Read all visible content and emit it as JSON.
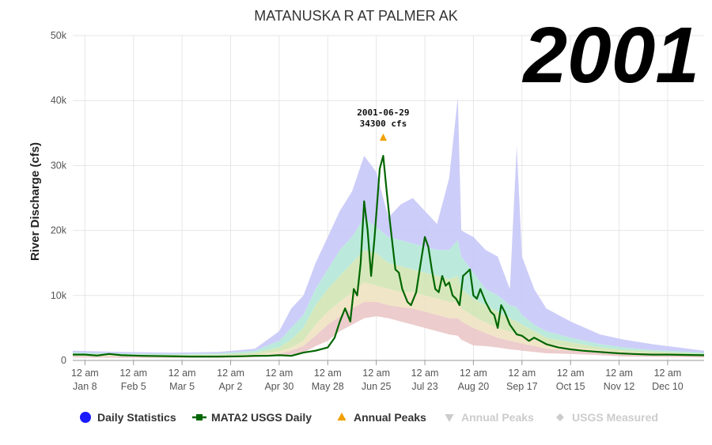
{
  "chart_data": {
    "type": "area",
    "title": "MATANUSKA R AT PALMER AK",
    "year_label": "2001",
    "ylabel": "River Discharge (cfs)",
    "xlabel": "",
    "ylim": [
      0,
      50000
    ],
    "y_ticks": [
      0,
      10000,
      20000,
      30000,
      40000,
      50000
    ],
    "y_tick_labels": [
      "0",
      "10k",
      "20k",
      "30k",
      "40k",
      "50k"
    ],
    "x_range": [
      "2001-01-01",
      "2001-12-31"
    ],
    "x_ticks": [
      {
        "date": "2001-01-08",
        "line1": "12 am",
        "line2": "Jan 8"
      },
      {
        "date": "2001-02-05",
        "line1": "12 am",
        "line2": "Feb 5"
      },
      {
        "date": "2001-03-05",
        "line1": "12 am",
        "line2": "Mar 5"
      },
      {
        "date": "2001-04-02",
        "line1": "12 am",
        "line2": "Apr 2"
      },
      {
        "date": "2001-04-30",
        "line1": "12 am",
        "line2": "Apr 30"
      },
      {
        "date": "2001-05-28",
        "line1": "12 am",
        "line2": "May 28"
      },
      {
        "date": "2001-06-25",
        "line1": "12 am",
        "line2": "Jun 25"
      },
      {
        "date": "2001-07-23",
        "line1": "12 am",
        "line2": "Jul 23"
      },
      {
        "date": "2001-08-20",
        "line1": "12 am",
        "line2": "Aug 20"
      },
      {
        "date": "2001-09-17",
        "line1": "12 am",
        "line2": "Sep 17"
      },
      {
        "date": "2001-10-15",
        "line1": "12 am",
        "line2": "Oct 15"
      },
      {
        "date": "2001-11-12",
        "line1": "12 am",
        "line2": "Nov 12"
      },
      {
        "date": "2001-12-10",
        "line1": "12 am",
        "line2": "Dec 10"
      }
    ],
    "grid": true,
    "stat_bands": {
      "x": [
        "2001-01-01",
        "2001-01-29",
        "2001-02-26",
        "2001-03-26",
        "2001-04-16",
        "2001-04-30",
        "2001-05-07",
        "2001-05-14",
        "2001-05-21",
        "2001-05-28",
        "2001-06-04",
        "2001-06-11",
        "2001-06-18",
        "2001-06-25",
        "2001-07-02",
        "2001-07-09",
        "2001-07-16",
        "2001-07-23",
        "2001-07-30",
        "2001-08-06",
        "2001-08-11",
        "2001-08-13",
        "2001-08-20",
        "2001-08-27",
        "2001-09-03",
        "2001-09-10",
        "2001-09-14",
        "2001-09-17",
        "2001-09-24",
        "2001-10-01",
        "2001-10-15",
        "2001-11-01",
        "2001-11-15",
        "2001-12-01",
        "2001-12-31"
      ],
      "max": [
        1500,
        1300,
        1200,
        1300,
        1800,
        4500,
        8000,
        10000,
        15000,
        19000,
        23000,
        26000,
        31500,
        29000,
        22000,
        24000,
        25000,
        23000,
        21000,
        28000,
        40500,
        20000,
        19000,
        17000,
        16000,
        11000,
        33000,
        16000,
        11000,
        8000,
        6000,
        4000,
        3200,
        2500,
        1500
      ],
      "p90": [
        1200,
        1100,
        1000,
        1100,
        1500,
        3000,
        5000,
        7000,
        11000,
        14000,
        17000,
        19000,
        22000,
        20500,
        19000,
        18500,
        18000,
        17500,
        17000,
        17000,
        18500,
        16000,
        13500,
        11000,
        10000,
        8500,
        8200,
        7000,
        5500,
        4500,
        3500,
        2500,
        2000,
        1600,
        1200
      ],
      "p75": [
        1000,
        900,
        850,
        900,
        1200,
        2000,
        3200,
        5000,
        8500,
        11000,
        13000,
        15000,
        17000,
        16500,
        15000,
        14500,
        14000,
        13500,
        13000,
        12500,
        13000,
        11000,
        9500,
        8500,
        7500,
        6500,
        6000,
        5500,
        4500,
        3500,
        2800,
        2000,
        1600,
        1400,
        1000
      ],
      "p50": [
        800,
        750,
        700,
        750,
        900,
        1400,
        2000,
        3000,
        5500,
        7500,
        9000,
        10500,
        12000,
        11500,
        11000,
        10500,
        10500,
        10000,
        9500,
        9000,
        9000,
        8000,
        6800,
        5800,
        5000,
        4400,
        4200,
        3800,
        3200,
        2600,
        2100,
        1600,
        1300,
        1100,
        900
      ],
      "p25": [
        650,
        600,
        550,
        600,
        700,
        1000,
        1500,
        2200,
        3800,
        5500,
        6800,
        8000,
        9000,
        9000,
        8500,
        8200,
        8000,
        7500,
        7000,
        6500,
        6500,
        6000,
        5000,
        4200,
        3500,
        3000,
        2800,
        2600,
        2200,
        1800,
        1500,
        1200,
        1000,
        850,
        700
      ],
      "min": [
        450,
        400,
        400,
        400,
        500,
        700,
        900,
        1200,
        2200,
        3000,
        4500,
        5500,
        6500,
        6800,
        6500,
        6000,
        5500,
        5000,
        4500,
        4000,
        3800,
        3200,
        2300,
        2200,
        2000,
        1700,
        1600,
        1500,
        1300,
        1100,
        1000,
        800,
        600,
        550,
        450
      ]
    },
    "series": [
      {
        "name": "MATA2 USGS Daily",
        "color": "#006600",
        "points": [
          [
            "2001-01-01",
            900
          ],
          [
            "2001-01-08",
            900
          ],
          [
            "2001-01-15",
            750
          ],
          [
            "2001-01-22",
            1000
          ],
          [
            "2001-01-29",
            800
          ],
          [
            "2001-02-10",
            700
          ],
          [
            "2001-02-26",
            650
          ],
          [
            "2001-03-10",
            600
          ],
          [
            "2001-03-26",
            600
          ],
          [
            "2001-04-09",
            650
          ],
          [
            "2001-04-16",
            700
          ],
          [
            "2001-04-23",
            700
          ],
          [
            "2001-04-30",
            800
          ],
          [
            "2001-05-07",
            700
          ],
          [
            "2001-05-14",
            1200
          ],
          [
            "2001-05-21",
            1500
          ],
          [
            "2001-05-28",
            2000
          ],
          [
            "2001-06-01",
            3500
          ],
          [
            "2001-06-04",
            6000
          ],
          [
            "2001-06-07",
            8000
          ],
          [
            "2001-06-10",
            6000
          ],
          [
            "2001-06-12",
            11000
          ],
          [
            "2001-06-14",
            10000
          ],
          [
            "2001-06-16",
            15000
          ],
          [
            "2001-06-18",
            24500
          ],
          [
            "2001-06-20",
            20000
          ],
          [
            "2001-06-22",
            13000
          ],
          [
            "2001-06-24",
            19000
          ],
          [
            "2001-06-27",
            29500
          ],
          [
            "2001-06-29",
            31500
          ],
          [
            "2001-07-01",
            26000
          ],
          [
            "2001-07-03",
            21000
          ],
          [
            "2001-07-06",
            14000
          ],
          [
            "2001-07-08",
            13500
          ],
          [
            "2001-07-10",
            11000
          ],
          [
            "2001-07-13",
            9000
          ],
          [
            "2001-07-15",
            8500
          ],
          [
            "2001-07-18",
            10500
          ],
          [
            "2001-07-20",
            14000
          ],
          [
            "2001-07-23",
            19000
          ],
          [
            "2001-07-25",
            17500
          ],
          [
            "2001-07-27",
            14000
          ],
          [
            "2001-07-29",
            11000
          ],
          [
            "2001-07-31",
            10500
          ],
          [
            "2001-08-02",
            13000
          ],
          [
            "2001-08-04",
            11500
          ],
          [
            "2001-08-06",
            12000
          ],
          [
            "2001-08-08",
            10000
          ],
          [
            "2001-08-10",
            9500
          ],
          [
            "2001-08-12",
            8500
          ],
          [
            "2001-08-14",
            13000
          ],
          [
            "2001-08-16",
            13500
          ],
          [
            "2001-08-18",
            14000
          ],
          [
            "2001-08-20",
            10000
          ],
          [
            "2001-08-22",
            9500
          ],
          [
            "2001-08-24",
            11000
          ],
          [
            "2001-08-27",
            9000
          ],
          [
            "2001-08-30",
            7500
          ],
          [
            "2001-09-01",
            7000
          ],
          [
            "2001-09-03",
            5000
          ],
          [
            "2001-09-05",
            8500
          ],
          [
            "2001-09-07",
            7500
          ],
          [
            "2001-09-10",
            5500
          ],
          [
            "2001-09-14",
            4000
          ],
          [
            "2001-09-17",
            3800
          ],
          [
            "2001-09-21",
            3000
          ],
          [
            "2001-09-24",
            3500
          ],
          [
            "2001-10-01",
            2500
          ],
          [
            "2001-10-08",
            2000
          ],
          [
            "2001-10-15",
            1700
          ],
          [
            "2001-10-22",
            1500
          ],
          [
            "2001-11-01",
            1300
          ],
          [
            "2001-11-12",
            1100
          ],
          [
            "2001-11-20",
            1000
          ],
          [
            "2001-12-01",
            900
          ],
          [
            "2001-12-10",
            900
          ],
          [
            "2001-12-20",
            850
          ],
          [
            "2001-12-31",
            800
          ]
        ]
      }
    ],
    "annual_peak": {
      "date": "2001-06-29",
      "value": 34300,
      "label_line1": "2001-06-29",
      "label_line2": "34300 cfs",
      "color": "#f0a000"
    },
    "legend": {
      "position": "bottom-center",
      "items": [
        {
          "label": "Daily Statistics",
          "symbol": "circle",
          "color": "#1a1aff",
          "text_color": "#333333"
        },
        {
          "label": "MATA2 USGS Daily",
          "symbol": "line-square",
          "color": "#006600",
          "text_color": "#333333"
        },
        {
          "label": "Annual Peaks",
          "symbol": "triangle-up",
          "color": "#f0a000",
          "text_color": "#333333"
        },
        {
          "label": "Annual Peaks",
          "symbol": "triangle-down",
          "color": "#cccccc",
          "text_color": "#cccccc"
        },
        {
          "label": "USGS Measured",
          "symbol": "diamond",
          "color": "#cccccc",
          "text_color": "#cccccc"
        }
      ]
    },
    "band_colors": {
      "max_p90": "#c8c8f8",
      "p90_p75": "#b4e8d8",
      "p75_p50": "#d2e6b4",
      "p50_p25": "#f0e2c2",
      "p25_min": "#eac6c6",
      "grid": "#e6e6e6"
    }
  }
}
